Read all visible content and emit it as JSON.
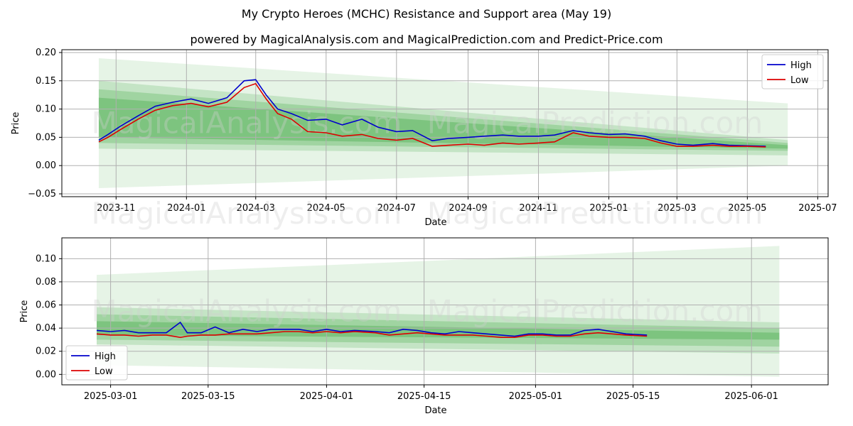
{
  "title": "My Crypto Heroes (MCHC) Resistance and Support area (May 19)",
  "subtitle": "powered by MagicalAnalysis.com and MagicalPrediction.com and Predict-Price.com",
  "watermark_left": "MagicalAnalysis.com",
  "watermark_right": "MagicalPrediction.com",
  "colors": {
    "high": "#0000cc",
    "low": "#dd0000",
    "band": "#4caf50"
  },
  "chart_data": [
    {
      "type": "line",
      "xlabel": "Date",
      "ylabel": "Price",
      "xlim": [
        "2023-09-15",
        "2025-07-10"
      ],
      "ylim": [
        -0.055,
        0.205
      ],
      "yticks": [
        -0.05,
        0.0,
        0.05,
        0.1,
        0.15,
        0.2
      ],
      "ytick_labels": [
        "−0.05",
        "0.00",
        "0.05",
        "0.10",
        "0.15",
        "0.20"
      ],
      "xticks": [
        "2023-11-01",
        "2024-01-01",
        "2024-03-01",
        "2024-05-01",
        "2024-07-01",
        "2024-09-01",
        "2024-11-01",
        "2025-01-01",
        "2025-03-01",
        "2025-05-01",
        "2025-07-01"
      ],
      "xtick_labels": [
        "2023-11",
        "2024-01",
        "2024-03",
        "2024-05",
        "2024-07",
        "2024-09",
        "2024-11",
        "2025-01",
        "2025-03",
        "2025-05",
        "2025-07"
      ],
      "grid": true,
      "legend": "top-right",
      "bands": [
        {
          "start": "2023-10-17",
          "end": "2025-06-05",
          "upper": [
            0.19,
            0.11
          ],
          "lower": [
            -0.04,
            0.0
          ]
        },
        {
          "start": "2023-10-17",
          "end": "2025-06-05",
          "upper": [
            0.15,
            0.045
          ],
          "lower": [
            0.03,
            0.018
          ]
        },
        {
          "start": "2023-10-17",
          "end": "2025-06-05",
          "upper": [
            0.135,
            0.04
          ],
          "lower": [
            0.04,
            0.026
          ]
        },
        {
          "start": "2023-10-17",
          "end": "2025-06-05",
          "upper": [
            0.12,
            0.036
          ],
          "lower": [
            0.05,
            0.03
          ]
        }
      ],
      "series": [
        {
          "name": "High",
          "x": [
            "2023-10-17",
            "2023-10-25",
            "2023-11-05",
            "2023-11-20",
            "2023-12-05",
            "2023-12-20",
            "2024-01-05",
            "2024-01-20",
            "2024-02-05",
            "2024-02-20",
            "2024-03-01",
            "2024-03-10",
            "2024-03-20",
            "2024-04-01",
            "2024-04-15",
            "2024-05-01",
            "2024-05-15",
            "2024-06-01",
            "2024-06-15",
            "2024-07-01",
            "2024-07-15",
            "2024-08-01",
            "2024-08-15",
            "2024-09-01",
            "2024-09-15",
            "2024-10-01",
            "2024-10-15",
            "2024-11-01",
            "2024-11-15",
            "2024-12-01",
            "2024-12-15",
            "2025-01-01",
            "2025-01-15",
            "2025-02-01",
            "2025-02-15",
            "2025-03-01",
            "2025-03-15",
            "2025-04-01",
            "2025-04-15",
            "2025-05-01",
            "2025-05-17"
          ],
          "y": [
            0.045,
            0.055,
            0.07,
            0.088,
            0.105,
            0.112,
            0.118,
            0.11,
            0.12,
            0.15,
            0.152,
            0.125,
            0.1,
            0.092,
            0.08,
            0.082,
            0.072,
            0.082,
            0.068,
            0.06,
            0.062,
            0.044,
            0.048,
            0.05,
            0.052,
            0.054,
            0.052,
            0.052,
            0.054,
            0.062,
            0.058,
            0.055,
            0.056,
            0.052,
            0.044,
            0.038,
            0.036,
            0.039,
            0.036,
            0.035,
            0.034
          ]
        },
        {
          "name": "Low",
          "x": [
            "2023-10-17",
            "2023-10-25",
            "2023-11-05",
            "2023-11-20",
            "2023-12-05",
            "2023-12-20",
            "2024-01-05",
            "2024-01-20",
            "2024-02-05",
            "2024-02-20",
            "2024-03-01",
            "2024-03-10",
            "2024-03-20",
            "2024-04-01",
            "2024-04-15",
            "2024-05-01",
            "2024-05-15",
            "2024-06-01",
            "2024-06-15",
            "2024-07-01",
            "2024-07-15",
            "2024-08-01",
            "2024-08-15",
            "2024-09-01",
            "2024-09-15",
            "2024-10-01",
            "2024-10-15",
            "2024-11-01",
            "2024-11-15",
            "2024-12-01",
            "2024-12-15",
            "2025-01-01",
            "2025-01-15",
            "2025-02-01",
            "2025-02-15",
            "2025-03-01",
            "2025-03-15",
            "2025-04-01",
            "2025-04-15",
            "2025-05-01",
            "2025-05-17"
          ],
          "y": [
            0.042,
            0.05,
            0.064,
            0.082,
            0.098,
            0.106,
            0.11,
            0.104,
            0.112,
            0.138,
            0.145,
            0.118,
            0.092,
            0.082,
            0.06,
            0.058,
            0.052,
            0.055,
            0.048,
            0.045,
            0.048,
            0.034,
            0.036,
            0.038,
            0.036,
            0.04,
            0.038,
            0.04,
            0.042,
            0.058,
            0.052,
            0.05,
            0.05,
            0.048,
            0.04,
            0.034,
            0.034,
            0.036,
            0.034,
            0.034,
            0.033
          ]
        }
      ]
    },
    {
      "type": "line",
      "xlabel": "Date",
      "ylabel": "Price",
      "xlim": [
        "2025-02-22",
        "2025-06-12"
      ],
      "ylim": [
        -0.009,
        0.118
      ],
      "yticks": [
        0.0,
        0.02,
        0.04,
        0.06,
        0.08,
        0.1
      ],
      "ytick_labels": [
        "0.00",
        "0.02",
        "0.04",
        "0.06",
        "0.08",
        "0.10"
      ],
      "xticks": [
        "2025-03-01",
        "2025-03-15",
        "2025-04-01",
        "2025-04-15",
        "2025-05-01",
        "2025-05-15",
        "2025-06-01"
      ],
      "xtick_labels": [
        "2025-03-01",
        "2025-03-15",
        "2025-04-01",
        "2025-04-15",
        "2025-05-01",
        "2025-05-15",
        "2025-06-01"
      ],
      "grid": true,
      "legend": "bottom-left",
      "bands": [
        {
          "start": "2025-02-27",
          "end": "2025-06-05",
          "upper": [
            0.086,
            0.111
          ],
          "lower": [
            0.008,
            -0.002
          ]
        },
        {
          "start": "2025-02-27",
          "end": "2025-06-05",
          "upper": [
            0.058,
            0.045
          ],
          "lower": [
            0.026,
            0.018
          ]
        },
        {
          "start": "2025-02-27",
          "end": "2025-06-05",
          "upper": [
            0.052,
            0.04
          ],
          "lower": [
            0.03,
            0.024
          ]
        },
        {
          "start": "2025-02-27",
          "end": "2025-06-05",
          "upper": [
            0.046,
            0.036
          ],
          "lower": [
            0.034,
            0.03
          ]
        }
      ],
      "series": [
        {
          "name": "High",
          "x": [
            "2025-02-27",
            "2025-03-01",
            "2025-03-03",
            "2025-03-05",
            "2025-03-07",
            "2025-03-09",
            "2025-03-11",
            "2025-03-12",
            "2025-03-14",
            "2025-03-16",
            "2025-03-18",
            "2025-03-20",
            "2025-03-22",
            "2025-03-24",
            "2025-03-26",
            "2025-03-28",
            "2025-03-30",
            "2025-04-01",
            "2025-04-03",
            "2025-04-05",
            "2025-04-08",
            "2025-04-10",
            "2025-04-12",
            "2025-04-14",
            "2025-04-16",
            "2025-04-18",
            "2025-04-20",
            "2025-04-22",
            "2025-04-24",
            "2025-04-26",
            "2025-04-28",
            "2025-04-30",
            "2025-05-02",
            "2025-05-04",
            "2025-05-06",
            "2025-05-08",
            "2025-05-10",
            "2025-05-12",
            "2025-05-14",
            "2025-05-17"
          ],
          "y": [
            0.038,
            0.037,
            0.038,
            0.036,
            0.036,
            0.036,
            0.045,
            0.036,
            0.036,
            0.041,
            0.036,
            0.039,
            0.037,
            0.039,
            0.039,
            0.039,
            0.037,
            0.039,
            0.037,
            0.038,
            0.037,
            0.036,
            0.039,
            0.038,
            0.036,
            0.035,
            0.037,
            0.036,
            0.035,
            0.034,
            0.033,
            0.035,
            0.035,
            0.034,
            0.034,
            0.038,
            0.039,
            0.037,
            0.035,
            0.034
          ]
        },
        {
          "name": "Low",
          "x": [
            "2025-02-27",
            "2025-03-01",
            "2025-03-03",
            "2025-03-05",
            "2025-03-07",
            "2025-03-09",
            "2025-03-11",
            "2025-03-12",
            "2025-03-14",
            "2025-03-16",
            "2025-03-18",
            "2025-03-20",
            "2025-03-22",
            "2025-03-24",
            "2025-03-26",
            "2025-03-28",
            "2025-03-30",
            "2025-04-01",
            "2025-04-03",
            "2025-04-05",
            "2025-04-08",
            "2025-04-10",
            "2025-04-12",
            "2025-04-14",
            "2025-04-16",
            "2025-04-18",
            "2025-04-20",
            "2025-04-22",
            "2025-04-24",
            "2025-04-26",
            "2025-04-28",
            "2025-04-30",
            "2025-05-02",
            "2025-05-04",
            "2025-05-06",
            "2025-05-08",
            "2025-05-10",
            "2025-05-12",
            "2025-05-14",
            "2025-05-17"
          ],
          "y": [
            0.035,
            0.034,
            0.034,
            0.033,
            0.034,
            0.034,
            0.032,
            0.033,
            0.034,
            0.034,
            0.035,
            0.035,
            0.035,
            0.036,
            0.037,
            0.037,
            0.036,
            0.037,
            0.036,
            0.037,
            0.036,
            0.034,
            0.035,
            0.036,
            0.035,
            0.034,
            0.034,
            0.034,
            0.033,
            0.032,
            0.032,
            0.034,
            0.034,
            0.033,
            0.033,
            0.035,
            0.036,
            0.035,
            0.034,
            0.033
          ]
        }
      ]
    }
  ]
}
